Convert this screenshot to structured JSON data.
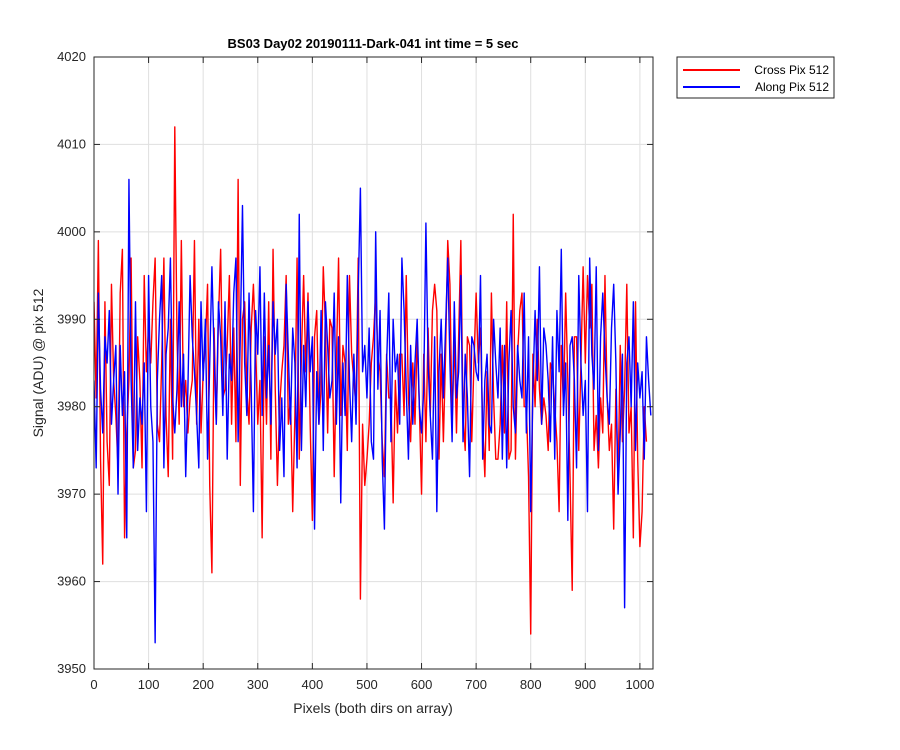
{
  "chart_data": {
    "type": "line",
    "title": "BS03 Day02 20190111-Dark-041 int time = 5 sec",
    "xlabel": "Pixels (both dirs on array)",
    "ylabel": "Signal (ADU) @ pix 512",
    "xlim": [
      0,
      1024
    ],
    "ylim": [
      3950,
      4020
    ],
    "xticks": [
      0,
      100,
      200,
      300,
      400,
      500,
      600,
      700,
      800,
      900,
      1000
    ],
    "yticks": [
      3950,
      3960,
      3970,
      3980,
      3990,
      4000,
      4010,
      4020
    ],
    "grid": true,
    "legend_placement": "outside-top-right",
    "x_step": 4,
    "series": [
      {
        "name": "Cross Pix 512",
        "color": "#ff0000",
        "values": [
          3992,
          3981,
          3999,
          3974,
          3962,
          3992,
          3976,
          3971,
          3994,
          3983,
          3979,
          3973,
          3993,
          3998,
          3965,
          3977,
          3983,
          3997,
          3973,
          3975,
          3988,
          3983,
          3973,
          3995,
          3984,
          3989,
          3985,
          3992,
          3997,
          3978,
          3976,
          3985,
          3997,
          3979,
          3972,
          3990,
          3974,
          4012,
          3988,
          3978,
          3999,
          3980,
          3983,
          3977,
          3981,
          3983,
          3999,
          3978,
          3990,
          3977,
          3984,
          3987,
          3994,
          3971,
          3961,
          3989,
          3978,
          3990,
          3998,
          3981,
          3982,
          3987,
          3995,
          3978,
          3989,
          3976,
          4006,
          3971,
          3990,
          3992,
          3982,
          3978,
          3989,
          3994,
          3987,
          3978,
          3983,
          3965,
          3988,
          3978,
          3992,
          3974,
          3998,
          3982,
          3971,
          3980,
          3984,
          3987,
          3995,
          3978,
          3981,
          3968,
          3979,
          3997,
          3974,
          3986,
          3995,
          3984,
          3993,
          3978,
          3967,
          3988,
          3991,
          3978,
          3982,
          3996,
          3989,
          3977,
          3990,
          3989,
          3972,
          3985,
          3997,
          3979,
          3987,
          3985,
          3975,
          3995,
          3986,
          3983,
          3980,
          3997,
          3958,
          3978,
          3971,
          3974,
          3978,
          3985,
          3988,
          3993,
          3986,
          3984,
          3976,
          3972,
          3986,
          3981,
          3981,
          3969,
          3983,
          3977,
          3986,
          3986,
          3979,
          3995,
          3981,
          3976,
          3985,
          3978,
          3988,
          3980,
          3970,
          3986,
          3976,
          3989,
          3979,
          3991,
          3994,
          3991,
          3974,
          3986,
          3976,
          3986,
          3999,
          3994,
          3978,
          3988,
          3977,
          3988,
          3999,
          3979,
          3975,
          3988,
          3987,
          3976,
          3985,
          3993,
          3985,
          3989,
          3978,
          3972,
          3984,
          3975,
          3993,
          3981,
          3974,
          3974,
          3978,
          3987,
          3977,
          3992,
          3974,
          3975,
          4002,
          3974,
          3986,
          3991,
          3993,
          3980,
          3980,
          3972,
          3954,
          3986,
          3980,
          3990,
          3982,
          3978,
          3981,
          3979,
          3975,
          3985,
          3984,
          3980,
          3976,
          3968,
          3987,
          3980,
          3993,
          3983,
          3972,
          3959,
          3988,
          3988,
          3975,
          3985,
          3996,
          3985,
          3995,
          3989,
          3994,
          3975,
          3979,
          3973,
          3981,
          3977,
          3995,
          3981,
          3975,
          3978,
          3966,
          3982,
          3971,
          3987,
          3976,
          3982,
          3994,
          3977,
          3980,
          3965,
          3992,
          3974,
          3964,
          3968,
          3980,
          3976
        ]
      },
      {
        "name": "Along Pix 512",
        "color": "#0000ff",
        "values": [
          3983,
          3973,
          3993,
          3982,
          3977,
          3988,
          3985,
          3991,
          3978,
          3983,
          3987,
          3970,
          3987,
          3979,
          3984,
          3965,
          4006,
          3983,
          3973,
          3992,
          3975,
          3981,
          3978,
          3985,
          3968,
          3995,
          3980,
          3976,
          3953,
          3983,
          3990,
          3995,
          3973,
          3986,
          3989,
          3997,
          3981,
          3977,
          3982,
          3992,
          3980,
          3986,
          3972,
          3982,
          3995,
          3988,
          3984,
          3979,
          3973,
          3992,
          3983,
          3990,
          3974,
          3985,
          3996,
          3986,
          3978,
          3992,
          3988,
          3979,
          3992,
          3974,
          3986,
          3983,
          3993,
          3997,
          3976,
          3988,
          4003,
          3985,
          3979,
          3993,
          3982,
          3968,
          3991,
          3986,
          3996,
          3979,
          3993,
          3981,
          3987,
          3978,
          3992,
          3986,
          3990,
          3975,
          3981,
          3972,
          3994,
          3986,
          3978,
          3989,
          3985,
          3973,
          4002,
          3975,
          3987,
          3980,
          3992,
          3984,
          3988,
          3966,
          3984,
          3978,
          3991,
          3975,
          3992,
          3987,
          3981,
          3983,
          3993,
          3978,
          3988,
          3969,
          3985,
          3979,
          3995,
          3983,
          3976,
          3986,
          3978,
          3993,
          4005,
          3984,
          3987,
          3981,
          3989,
          3976,
          3974,
          4000,
          3982,
          3991,
          3974,
          3966,
          3985,
          3993,
          3976,
          3990,
          3984,
          3986,
          3978,
          3997,
          3991,
          3982,
          3974,
          3987,
          3978,
          3985,
          3990,
          3980,
          3977,
          3982,
          4001,
          3985,
          3979,
          3974,
          3988,
          3968,
          3984,
          3990,
          3981,
          3989,
          3997,
          3985,
          3976,
          3992,
          3981,
          3984,
          3995,
          3976,
          3986,
          3981,
          3972,
          3988,
          3987,
          3984,
          3983,
          3995,
          3974,
          3983,
          3986,
          3978,
          3977,
          3990,
          3985,
          3981,
          3989,
          3974,
          3987,
          3973,
          3985,
          3991,
          3980,
          3977,
          3987,
          3983,
          3981,
          3993,
          3977,
          3988,
          3968,
          3982,
          3991,
          3983,
          3996,
          3978,
          3989,
          3987,
          3983,
          3976,
          3988,
          3974,
          3991,
          3984,
          3998,
          3979,
          3985,
          3967,
          3987,
          3988,
          3983,
          3973,
          3995,
          3985,
          3979,
          3983,
          3968,
          3997,
          3986,
          3982,
          3996,
          3975,
          3988,
          3993,
          3986,
          3981,
          3978,
          3989,
          3994,
          3985,
          3970,
          3977,
          3986,
          3957,
          3985,
          3988,
          3980,
          3992,
          3975,
          3985,
          3981,
          3984,
          3974,
          3988,
          3983,
          3979
        ]
      }
    ]
  }
}
